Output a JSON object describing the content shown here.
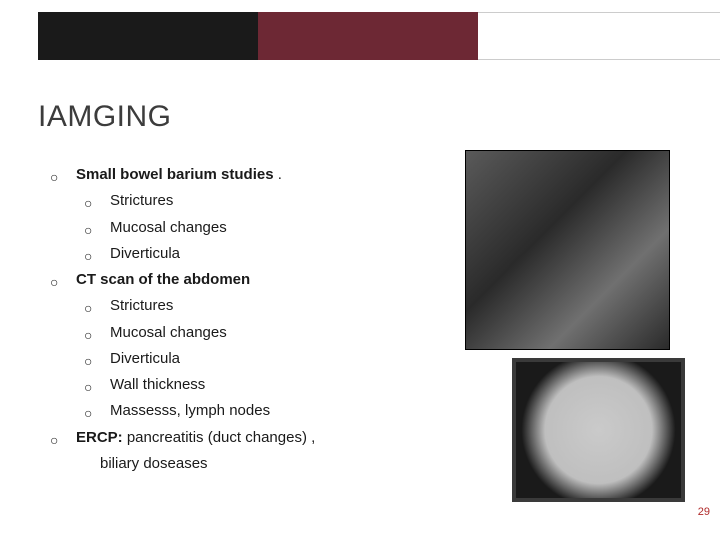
{
  "title": "IAMGING",
  "bullets": {
    "item1": {
      "label": "Small bowel barium studies",
      "suffix": "  ."
    },
    "item1_sub": [
      "Strictures",
      "Mucosal changes",
      "Diverticula"
    ],
    "item2": {
      "label": "CT scan of the abdomen"
    },
    "item2_sub": [
      "Strictures",
      "Mucosal changes",
      "Diverticula",
      "Wall thickness",
      "Massesss, lymph nodes"
    ],
    "item3": {
      "prefix": " ",
      "bold": "ERCP:",
      "rest": " pancreatitis (duct changes) ,"
    },
    "item3_line2": "biliary doseases"
  },
  "page_number": "29",
  "colors": {
    "bar_dark": "#1a1a1a",
    "bar_maroon": "#6d2834",
    "title_color": "#3c3c3c",
    "pagenum_color": "#b02a2a"
  }
}
